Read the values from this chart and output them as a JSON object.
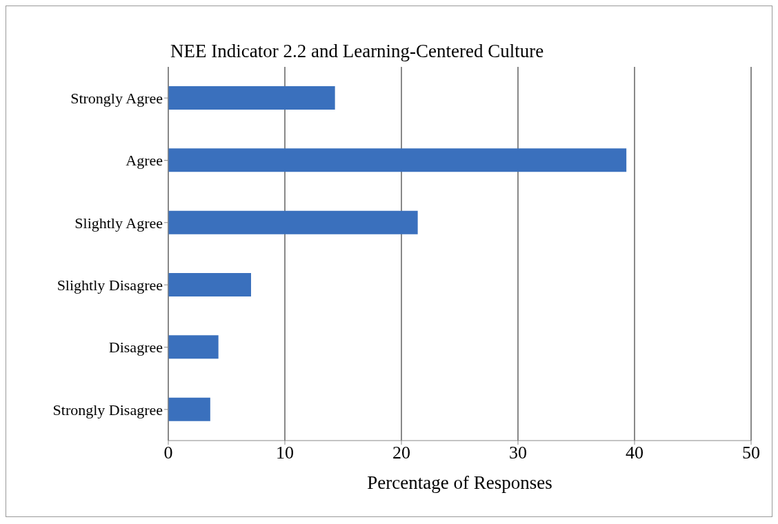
{
  "chart_data": {
    "type": "bar",
    "orientation": "horizontal",
    "title": "NEE Indicator 2.2 and Learning-Centered Culture",
    "xlabel": "Percentage of Responses",
    "categories": [
      "Strongly Agree",
      "Agree",
      "Slightly Agree",
      "Slightly Disagree",
      "Disagree",
      "Strongly Disagree"
    ],
    "values": [
      14.3,
      39.3,
      21.4,
      7.1,
      4.3,
      3.6
    ],
    "color": "#3a70bd",
    "xlim": [
      0,
      50
    ],
    "xticks": [
      0,
      10,
      20,
      30,
      40,
      50
    ],
    "grid": "x",
    "legend": false
  }
}
